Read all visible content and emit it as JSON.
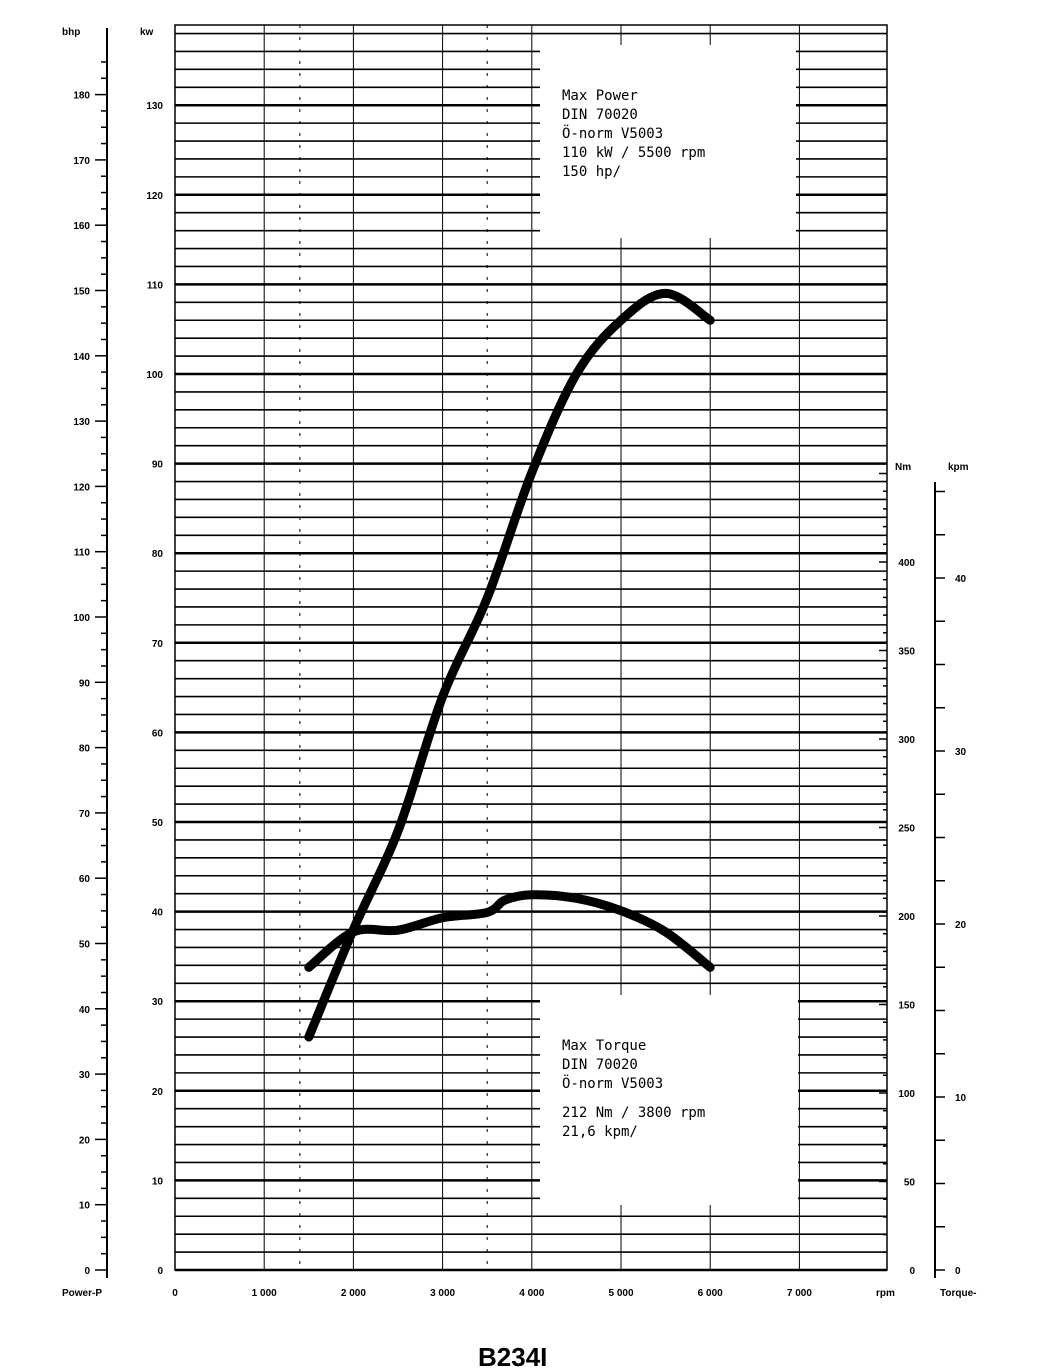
{
  "chart_data": {
    "type": "line",
    "title": "B234I",
    "xlabel": "rpm",
    "xlim": [
      0,
      8000
    ],
    "x_ticks": [
      "0",
      "1 000",
      "2 000",
      "3 000",
      "4 000",
      "5 000",
      "6 000",
      "7 000"
    ],
    "grid": true,
    "axes": {
      "power_kw": {
        "label": "kw",
        "range": [
          0,
          139
        ],
        "ticks": [
          "0",
          "10",
          "20",
          "30",
          "40",
          "50",
          "60",
          "70",
          "80",
          "90",
          "100",
          "110",
          "120",
          "130"
        ]
      },
      "power_bhp": {
        "label": "bhp",
        "caption": "Power-P",
        "range": [
          0,
          186
        ],
        "ticks": [
          "0",
          "10",
          "20",
          "30",
          "40",
          "50",
          "60",
          "70",
          "80",
          "90",
          "100",
          "110",
          "120",
          "130",
          "140",
          "150",
          "160",
          "170",
          "180"
        ]
      },
      "torque_nm": {
        "label": "Nm",
        "range": [
          0,
          450
        ],
        "ticks": [
          "0",
          "50",
          "100",
          "150",
          "200",
          "250",
          "300",
          "350",
          "400"
        ]
      },
      "torque_kpm": {
        "label": "kpm",
        "caption": "Torque-",
        "range": [
          0,
          45
        ],
        "ticks": [
          "0",
          "10",
          "20",
          "30",
          "40"
        ]
      }
    },
    "series": [
      {
        "axis": "power_kw",
        "x": [
          1500,
          2000,
          2500,
          3000,
          3500,
          4000,
          4500,
          5000,
          5500,
          6000
        ],
        "y": [
          26,
          38,
          49,
          64,
          75,
          89,
          100,
          106,
          109,
          106
        ]
      },
      {
        "axis": "torque_nm",
        "x": [
          1500,
          2000,
          2500,
          3000,
          3500,
          3700,
          4000,
          4500,
          5000,
          5500,
          6000
        ],
        "y": [
          171,
          191,
          192,
          199,
          202,
          209,
          212,
          210,
          203,
          191,
          171
        ]
      }
    ],
    "annotations": {
      "power": [
        "Max Power",
        "DIN 70020",
        "Ö-norm V5003",
        "110 kW / 5500 rpm",
        "150 hp/"
      ],
      "torque": [
        "Max Torque",
        "DIN 70020",
        "Ö-norm V5003",
        "212 Nm  / 3800 rpm",
        "21,6 kpm/"
      ]
    }
  }
}
